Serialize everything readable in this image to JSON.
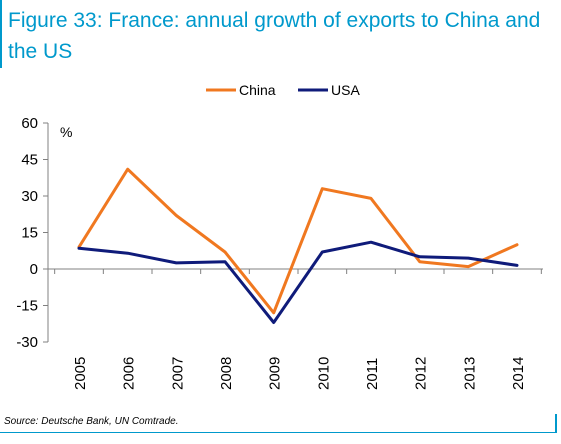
{
  "figure": {
    "title": "Figure 33: France: annual growth of exports to China and the US",
    "source": "Source: Deutsche Bank, UN Comtrade."
  },
  "colors": {
    "accent": "#0099cc",
    "china": "#f07820",
    "usa": "#0f1b7a"
  },
  "chart_data": {
    "type": "line",
    "unit_label": "%",
    "x": [
      "2005",
      "2006",
      "2007",
      "2008",
      "2009",
      "2010",
      "2011",
      "2012",
      "2013",
      "2014"
    ],
    "series": [
      {
        "name": "China",
        "color": "#f07820",
        "values": [
          9,
          41,
          22,
          7,
          -18,
          33,
          29,
          3,
          1,
          10
        ]
      },
      {
        "name": "USA",
        "color": "#0f1b7a",
        "values": [
          8.5,
          6.5,
          2.5,
          3,
          -22,
          7,
          11,
          5,
          4.5,
          1.5
        ]
      }
    ],
    "ylim": [
      -30,
      60
    ],
    "yticks": [
      -30,
      -15,
      0,
      15,
      30,
      45,
      60
    ],
    "legend_position": "top-center",
    "grid": false
  }
}
